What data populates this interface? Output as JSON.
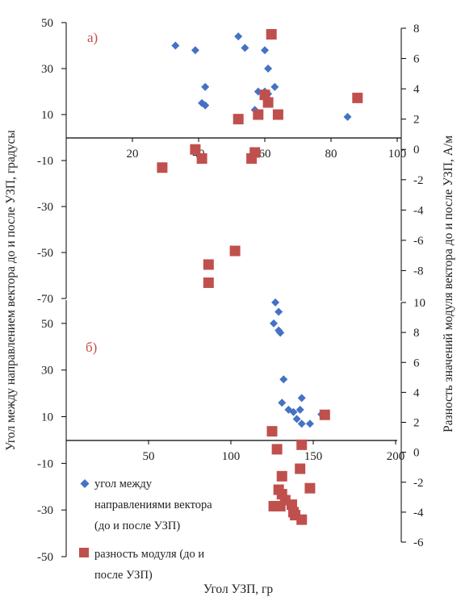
{
  "chart_data": [
    {
      "type": "scatter",
      "panel_label": "а)",
      "x_ticks": [
        "20",
        "40",
        "60",
        "80",
        "100"
      ],
      "xlim": [
        0,
        100
      ],
      "y_left_ticks": [
        "50",
        "30",
        "10",
        "-10",
        "-30",
        "-50",
        "-70"
      ],
      "ylim_left": [
        -70,
        50
      ],
      "y_right_ticks": [
        "8",
        "6",
        "4",
        "2",
        "0",
        "-2",
        "-4",
        "-6",
        "-8"
      ],
      "ylim_right": [
        -10,
        8
      ],
      "series": [
        {
          "axis": "left",
          "color": "#4472c4",
          "marker": "diamond",
          "points": [
            [
              33,
              40
            ],
            [
              39,
              38
            ],
            [
              42,
              22
            ],
            [
              41,
              15
            ],
            [
              42,
              14
            ],
            [
              52,
              44
            ],
            [
              54,
              39
            ],
            [
              57,
              12
            ],
            [
              58,
              20
            ],
            [
              60,
              38
            ],
            [
              61,
              30
            ],
            [
              63,
              22
            ],
            [
              60,
              20
            ],
            [
              61,
              19
            ],
            [
              85,
              9
            ]
          ]
        },
        {
          "axis": "right",
          "color": "#c0504d",
          "marker": "square",
          "points": [
            [
              62,
              7.6
            ],
            [
              60,
              3.6
            ],
            [
              61,
              3.1
            ],
            [
              52,
              2.0
            ],
            [
              58,
              2.3
            ],
            [
              64,
              2.3
            ],
            [
              88,
              3.4
            ],
            [
              39,
              0.0
            ],
            [
              41,
              -0.6
            ],
            [
              57,
              -0.2
            ],
            [
              56,
              -0.6
            ],
            [
              29,
              -1.2
            ],
            [
              51,
              -6.7
            ],
            [
              43,
              -7.6
            ],
            [
              43,
              -8.8
            ]
          ]
        }
      ]
    },
    {
      "type": "scatter",
      "panel_label": "б)",
      "x_ticks": [
        "50",
        "100",
        "150",
        "200"
      ],
      "xlim": [
        0,
        200
      ],
      "y_left_ticks": [
        "50",
        "30",
        "10",
        "-10",
        "-30",
        "-50"
      ],
      "ylim_left": [
        -50,
        60
      ],
      "y_right_ticks": [
        "10",
        "8",
        "6",
        "4",
        "2",
        "0",
        "-2",
        "-4",
        "-6"
      ],
      "ylim_right": [
        -6,
        10
      ],
      "series": [
        {
          "axis": "left",
          "color": "#4472c4",
          "marker": "diamond",
          "points": [
            [
              127,
              59
            ],
            [
              129,
              55
            ],
            [
              126,
              50
            ],
            [
              129,
              47
            ],
            [
              130,
              46
            ],
            [
              132,
              26
            ],
            [
              131,
              16
            ],
            [
              135,
              13
            ],
            [
              138,
              12
            ],
            [
              142,
              13
            ],
            [
              143,
              18
            ],
            [
              140,
              9
            ],
            [
              143,
              7
            ],
            [
              148,
              7
            ],
            [
              155,
              11
            ]
          ]
        },
        {
          "axis": "right",
          "color": "#c0504d",
          "marker": "square",
          "points": [
            [
              125,
              1.4
            ],
            [
              157,
              2.5
            ],
            [
              128,
              0.2
            ],
            [
              143,
              0.5
            ],
            [
              131,
              -1.6
            ],
            [
              142,
              -1.1
            ],
            [
              129,
              -2.5
            ],
            [
              131,
              -2.8
            ],
            [
              133,
              -3.2
            ],
            [
              130,
              -3.6
            ],
            [
              126,
              -3.6
            ],
            [
              137,
              -3.5
            ],
            [
              148,
              -2.4
            ],
            [
              138,
              -4.0
            ],
            [
              139,
              -4.2
            ],
            [
              143,
              -4.5
            ]
          ]
        }
      ]
    }
  ],
  "axis_titles": {
    "y_left": "Угол между направлением вектора до и после УЗП, градусы",
    "y_right": "Разность значений модуля вектора до и после УЗП, А/м",
    "x": "Угол УЗП, гр"
  },
  "legend": {
    "placement": "bottom-left",
    "items": [
      {
        "color": "#4472c4",
        "marker": "diamond",
        "lines": [
          "угол между",
          "направлениями вектора",
          "(до и после УЗП)"
        ]
      },
      {
        "color": "#c0504d",
        "marker": "square",
        "lines": [
          "разность модуля (до и",
          "после УЗП)"
        ]
      }
    ]
  }
}
